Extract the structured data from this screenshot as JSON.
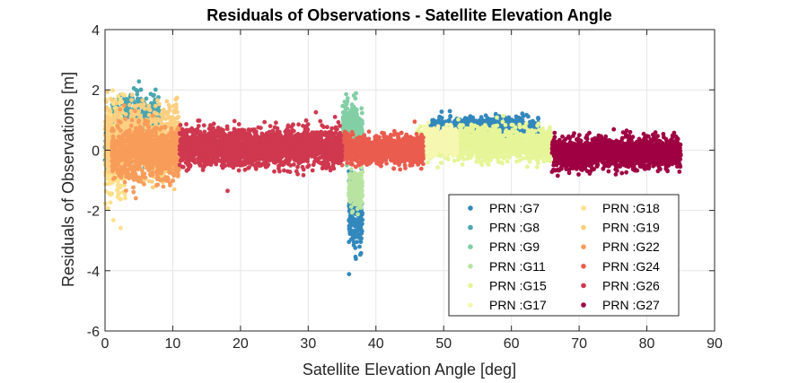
{
  "chart_data": {
    "type": "scatter",
    "title": "Residuals of Observations - Satellite Elevation Angle",
    "xlabel": "Satellite Elevation Angle [deg]",
    "ylabel": "Residuals of Observations [m]",
    "xlim": [
      0,
      90
    ],
    "ylim": [
      -6,
      4
    ],
    "xticks": [
      "0",
      "10",
      "20",
      "30",
      "40",
      "50",
      "60",
      "70",
      "80",
      "90"
    ],
    "yticks": [
      "4",
      "2",
      "0",
      "-2",
      "-4",
      "-6"
    ],
    "grid": true,
    "legend_position": "bottom-right",
    "series": [
      {
        "name": "PRN :G7",
        "color": "#3288bd",
        "x_range": [
          0,
          1
        ],
        "y_mean": 0.2,
        "spread": 0.6,
        "bands": [
          [
            36,
            38,
            -2.2,
            1.0
          ],
          [
            48,
            64,
            0.6,
            0.4
          ]
        ]
      },
      {
        "name": "PRN :G8",
        "color": "#4ba6b0",
        "x_range": [
          1,
          8
        ],
        "y_mean": 0.9,
        "spread": 0.8
      },
      {
        "name": "PRN :G9",
        "color": "#83cfa5",
        "x_range": [
          35,
          38
        ],
        "y_mean": 0.8,
        "spread": 0.7
      },
      {
        "name": "PRN :G11",
        "color": "#b9e3a0",
        "x_range": [
          36,
          38
        ],
        "y_mean": -1.3,
        "spread": 0.5
      },
      {
        "name": "PRN :G15",
        "color": "#e6f598",
        "x_range": [
          46,
          66
        ],
        "y_mean": 0.2,
        "spread": 0.45
      },
      {
        "name": "PRN :G17",
        "color": "#f6f7b0",
        "x_range": [
          47,
          52
        ],
        "y_mean": 0.3,
        "spread": 0.4
      },
      {
        "name": "PRN :G18",
        "color": "#fee08b",
        "x_range": [
          0,
          3
        ],
        "y_mean": 0.0,
        "spread": 1.6
      },
      {
        "name": "PRN :G19",
        "color": "#fdcf80",
        "x_range": [
          0,
          11
        ],
        "y_mean": 0.3,
        "spread": 1.0
      },
      {
        "name": "PRN :G22",
        "color": "#f89c5a",
        "x_range": [
          1,
          11
        ],
        "y_mean": -0.1,
        "spread": 0.8
      },
      {
        "name": "PRN :G24",
        "color": "#ea5c4e",
        "x_range": [
          35,
          47
        ],
        "y_mean": 0.0,
        "spread": 0.4
      },
      {
        "name": "PRN :G26",
        "color": "#cf384f",
        "x_range": [
          11,
          35
        ],
        "y_mean": 0.1,
        "spread": 0.55
      },
      {
        "name": "PRN :G27",
        "color": "#9e0142",
        "x_range": [
          66,
          85
        ],
        "y_mean": -0.1,
        "spread": 0.45
      }
    ]
  }
}
